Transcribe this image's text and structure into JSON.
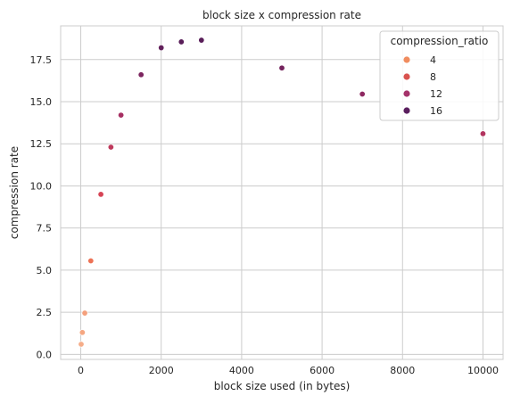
{
  "chart_data": {
    "type": "scatter",
    "title": "block size x compression rate",
    "xlabel": "block size used (in bytes)",
    "ylabel": "compression rate",
    "xlim": [
      -500,
      10500
    ],
    "ylim": [
      -0.3,
      19.5
    ],
    "xticks": [
      0,
      2000,
      4000,
      6000,
      8000,
      10000
    ],
    "yticks": [
      0.0,
      2.5,
      5.0,
      7.5,
      10.0,
      12.5,
      15.0,
      17.5
    ],
    "xtick_labels": [
      "0",
      "2000",
      "4000",
      "6000",
      "8000",
      "10000"
    ],
    "ytick_labels": [
      "0.0",
      "2.5",
      "5.0",
      "7.5",
      "10.0",
      "12.5",
      "15.0",
      "17.5"
    ],
    "grid": true,
    "hue": "compression_ratio",
    "legend": {
      "title": "compression_ratio",
      "placement": "top-right",
      "entries": [
        {
          "label": "4",
          "color": "#f08c5f"
        },
        {
          "label": "8",
          "color": "#d9534f"
        },
        {
          "label": "12",
          "color": "#a5326a"
        },
        {
          "label": "16",
          "color": "#5a1f5e"
        }
      ]
    },
    "points": [
      {
        "x": 10,
        "y": 0.6,
        "hue": 1.5
      },
      {
        "x": 40,
        "y": 1.3,
        "hue": 2
      },
      {
        "x": 100,
        "y": 2.45,
        "hue": 2.5
      },
      {
        "x": 250,
        "y": 5.55,
        "hue": 6
      },
      {
        "x": 500,
        "y": 9.5,
        "hue": 10
      },
      {
        "x": 750,
        "y": 12.3,
        "hue": 12
      },
      {
        "x": 1000,
        "y": 14.2,
        "hue": 14
      },
      {
        "x": 1500,
        "y": 16.6,
        "hue": 16.5
      },
      {
        "x": 2000,
        "y": 18.2,
        "hue": 18
      },
      {
        "x": 2500,
        "y": 18.55,
        "hue": 18.5
      },
      {
        "x": 3000,
        "y": 18.65,
        "hue": 18.5
      },
      {
        "x": 5000,
        "y": 17.0,
        "hue": 17
      },
      {
        "x": 7000,
        "y": 15.45,
        "hue": 15.5
      },
      {
        "x": 10000,
        "y": 13.1,
        "hue": 13
      }
    ],
    "colors": {
      "background": "#ffffff",
      "grid": "#cccccc",
      "axes_edge": "#cccccc",
      "text": "#262626"
    }
  }
}
